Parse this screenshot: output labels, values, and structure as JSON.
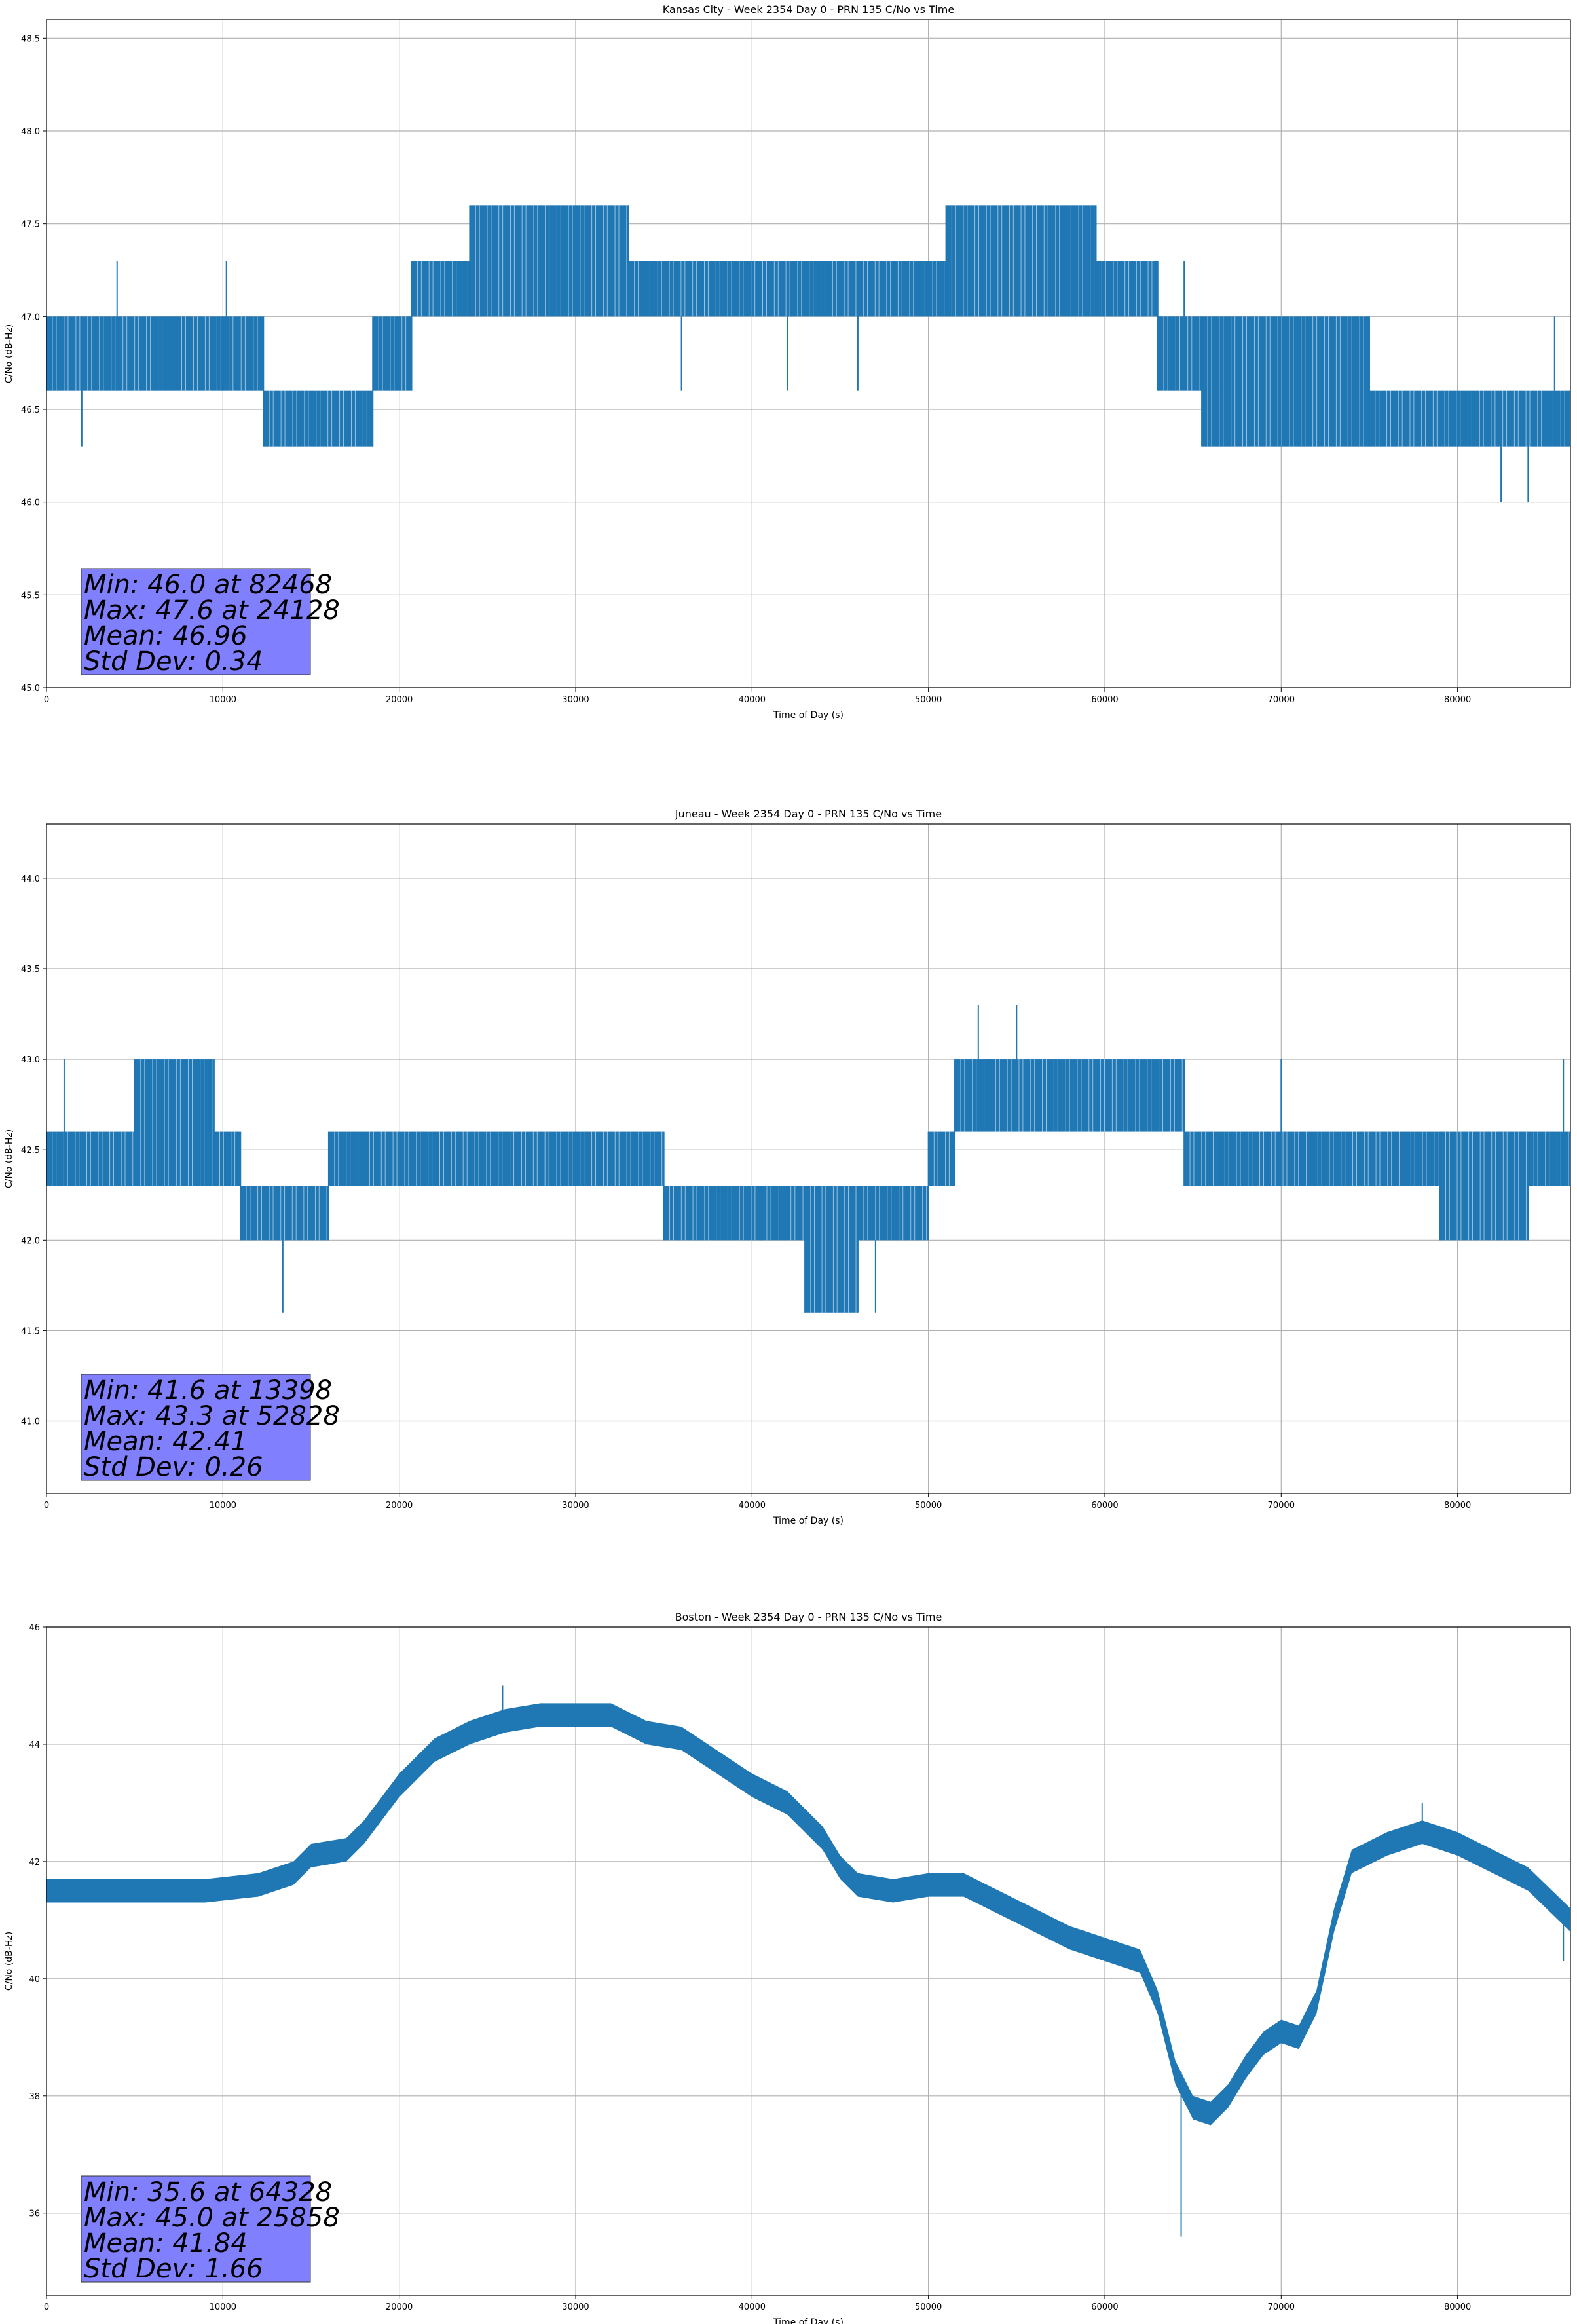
{
  "figure": {
    "background": "#ffffff",
    "line_color": "#1f77b4",
    "grid_color": "#b0b0b0",
    "stats_box_color": "#8080ff"
  },
  "chart_data": [
    {
      "type": "line",
      "title": "Kansas City - Week 2354 Day 0 - PRN 135 C/No vs Time",
      "xlabel": "Time of Day (s)",
      "ylabel": "C/No (dB-Hz)",
      "xlim": [
        0,
        86400
      ],
      "ylim": [
        45.0,
        48.6
      ],
      "grid": true,
      "xticks": [
        0,
        10000,
        20000,
        30000,
        40000,
        50000,
        60000,
        70000,
        80000
      ],
      "xtick_labels": [
        "0",
        "10000",
        "20000",
        "30000",
        "40000",
        "50000",
        "60000",
        "70000",
        "80000"
      ],
      "yticks": [
        45.0,
        45.5,
        46.0,
        46.5,
        47.0,
        47.5,
        48.0,
        48.5
      ],
      "ytick_labels": [
        "45.0",
        "45.5",
        "46.0",
        "46.5",
        "47.0",
        "47.5",
        "48.0",
        "48.5"
      ],
      "series": [
        {
          "name": "C/No",
          "bands": [
            [
              0,
              2000,
              46.6,
              47.0
            ],
            [
              2000,
              10000,
              46.6,
              47.0
            ],
            [
              10000,
              12300,
              46.6,
              47.0
            ],
            [
              12300,
              18500,
              46.3,
              46.6
            ],
            [
              18500,
              20700,
              46.6,
              47.0
            ],
            [
              20700,
              24000,
              47.0,
              47.3
            ],
            [
              24000,
              33000,
              47.0,
              47.6
            ],
            [
              33000,
              46000,
              47.0,
              47.3
            ],
            [
              46000,
              51000,
              47.0,
              47.3
            ],
            [
              51000,
              59500,
              47.0,
              47.6
            ],
            [
              59500,
              63000,
              47.0,
              47.3
            ],
            [
              63000,
              65500,
              46.6,
              47.0
            ],
            [
              65500,
              75000,
              46.3,
              47.0
            ],
            [
              75000,
              86400,
              46.3,
              46.6
            ]
          ]
        }
      ],
      "spikes": [
        [
          2000,
          46.3
        ],
        [
          4000,
          47.3
        ],
        [
          10200,
          47.3
        ],
        [
          14500,
          46.3
        ],
        [
          36000,
          46.6
        ],
        [
          42000,
          46.6
        ],
        [
          46000,
          46.6
        ],
        [
          55000,
          47.6
        ],
        [
          64500,
          47.3
        ],
        [
          82468,
          46.0
        ],
        [
          84000,
          46.0
        ],
        [
          85500,
          47.0
        ]
      ],
      "stats": {
        "min": "Min: 46.0 at 82468",
        "max": "Max: 47.6 at 24128",
        "mean": "Mean: 46.96",
        "std": "Std Dev: 0.34"
      }
    },
    {
      "type": "line",
      "title": "Juneau - Week 2354 Day 0 - PRN 135 C/No vs Time",
      "xlabel": "Time of Day (s)",
      "ylabel": "C/No (dB-Hz)",
      "xlim": [
        0,
        86400
      ],
      "ylim": [
        40.6,
        44.3
      ],
      "grid": true,
      "xticks": [
        0,
        10000,
        20000,
        30000,
        40000,
        50000,
        60000,
        70000,
        80000
      ],
      "xtick_labels": [
        "0",
        "10000",
        "20000",
        "30000",
        "40000",
        "50000",
        "60000",
        "70000",
        "80000"
      ],
      "yticks": [
        41.0,
        41.5,
        42.0,
        42.5,
        43.0,
        43.5,
        44.0
      ],
      "ytick_labels": [
        "41.0",
        "41.5",
        "42.0",
        "42.5",
        "43.0",
        "43.5",
        "44.0"
      ],
      "series": [
        {
          "name": "C/No",
          "bands": [
            [
              0,
              5000,
              42.3,
              42.6
            ],
            [
              5000,
              9500,
              42.3,
              43.0
            ],
            [
              9500,
              11000,
              42.3,
              42.6
            ],
            [
              11000,
              16000,
              42.0,
              42.3
            ],
            [
              16000,
              35000,
              42.3,
              42.6
            ],
            [
              35000,
              40500,
              42.0,
              42.3
            ],
            [
              40500,
              43000,
              42.0,
              42.3
            ],
            [
              43000,
              46000,
              41.6,
              42.3
            ],
            [
              46000,
              50000,
              42.0,
              42.3
            ],
            [
              50000,
              51500,
              42.3,
              42.6
            ],
            [
              51500,
              64500,
              42.6,
              43.0
            ],
            [
              64500,
              79000,
              42.3,
              42.6
            ],
            [
              79000,
              84000,
              42.0,
              42.6
            ],
            [
              84000,
              86400,
              42.3,
              42.6
            ]
          ]
        }
      ],
      "spikes": [
        [
          1000,
          43.0
        ],
        [
          13398,
          41.6
        ],
        [
          47000,
          41.6
        ],
        [
          52828,
          43.3
        ],
        [
          55000,
          43.3
        ],
        [
          70000,
          43.0
        ],
        [
          86000,
          43.0
        ]
      ],
      "stats": {
        "min": "Min: 41.6 at 13398",
        "max": "Max: 43.3 at 52828",
        "mean": "Mean: 42.41",
        "std": "Std Dev: 0.26"
      }
    },
    {
      "type": "line",
      "title": "Boston - Week 2354 Day 0 - PRN 135 C/No vs Time",
      "xlabel": "Time of Day (s)",
      "ylabel": "C/No (dB-Hz)",
      "xlim": [
        0,
        86400
      ],
      "ylim": [
        34.6,
        46.0
      ],
      "grid": true,
      "xticks": [
        0,
        10000,
        20000,
        30000,
        40000,
        50000,
        60000,
        70000,
        80000
      ],
      "xtick_labels": [
        "0",
        "10000",
        "20000",
        "30000",
        "40000",
        "50000",
        "60000",
        "70000",
        "80000"
      ],
      "yticks": [
        36,
        38,
        40,
        42,
        44,
        46
      ],
      "ytick_labels": [
        "36",
        "38",
        "40",
        "42",
        "44",
        "46"
      ],
      "series": [
        {
          "name": "C/No",
          "points": [
            [
              0,
              41.5
            ],
            [
              3000,
              41.5
            ],
            [
              6000,
              41.5
            ],
            [
              9000,
              41.5
            ],
            [
              12000,
              41.6
            ],
            [
              14000,
              41.8
            ],
            [
              15000,
              42.1
            ],
            [
              17000,
              42.2
            ],
            [
              18000,
              42.5
            ],
            [
              19000,
              42.9
            ],
            [
              20000,
              43.3
            ],
            [
              21000,
              43.6
            ],
            [
              22000,
              43.9
            ],
            [
              24000,
              44.2
            ],
            [
              26000,
              44.4
            ],
            [
              28000,
              44.5
            ],
            [
              30000,
              44.5
            ],
            [
              32000,
              44.5
            ],
            [
              34000,
              44.2
            ],
            [
              36000,
              44.1
            ],
            [
              38000,
              43.7
            ],
            [
              40000,
              43.3
            ],
            [
              42000,
              43.0
            ],
            [
              44000,
              42.4
            ],
            [
              45000,
              41.9
            ],
            [
              46000,
              41.6
            ],
            [
              48000,
              41.5
            ],
            [
              50000,
              41.6
            ],
            [
              52000,
              41.6
            ],
            [
              54000,
              41.3
            ],
            [
              56000,
              41.0
            ],
            [
              58000,
              40.7
            ],
            [
              60000,
              40.5
            ],
            [
              62000,
              40.3
            ],
            [
              63000,
              39.6
            ],
            [
              64000,
              38.4
            ],
            [
              65000,
              37.8
            ],
            [
              66000,
              37.7
            ],
            [
              67000,
              38.0
            ],
            [
              68000,
              38.5
            ],
            [
              69000,
              38.9
            ],
            [
              70000,
              39.1
            ],
            [
              71000,
              39.0
            ],
            [
              72000,
              39.6
            ],
            [
              73000,
              41.0
            ],
            [
              74000,
              42.0
            ],
            [
              76000,
              42.3
            ],
            [
              78000,
              42.5
            ],
            [
              80000,
              42.3
            ],
            [
              82000,
              42.0
            ],
            [
              84000,
              41.7
            ],
            [
              86400,
              41.0
            ]
          ],
          "halfwidth": 0.2
        }
      ],
      "spikes": [
        [
          25858,
          45.0
        ],
        [
          64328,
          35.6
        ],
        [
          78000,
          43.0
        ],
        [
          86000,
          40.3
        ]
      ],
      "stats": {
        "min": "Min: 35.6 at 64328",
        "max": "Max: 45.0 at 25858",
        "mean": "Mean: 41.84",
        "std": "Std Dev: 1.66"
      }
    }
  ]
}
